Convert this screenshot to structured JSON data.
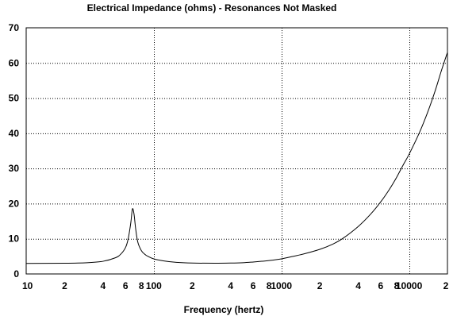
{
  "chart_data": {
    "type": "line",
    "title": "Electrical Impedance (ohms) - Resonances Not Masked",
    "xlabel": "Frequency (hertz)",
    "ylabel": "",
    "x_scale": "log",
    "xlim": [
      10,
      20000
    ],
    "ylim": [
      0,
      70
    ],
    "grid": true,
    "y_ticks": [
      "0",
      "10",
      "20",
      "30",
      "40",
      "50",
      "60",
      "70"
    ],
    "y_tick_values": [
      0,
      10,
      20,
      30,
      40,
      50,
      60,
      70
    ],
    "x_ticks": [
      "10",
      "2",
      "4",
      "6",
      "8",
      "100",
      "2",
      "4",
      "6",
      "8",
      "1000",
      "2",
      "4",
      "6",
      "8",
      "10000",
      "2"
    ],
    "x_tick_values": [
      10,
      20,
      40,
      60,
      80,
      100,
      200,
      400,
      600,
      800,
      1000,
      2000,
      4000,
      6000,
      8000,
      10000,
      20000
    ],
    "major_grid_x": [
      100,
      1000,
      10000
    ],
    "series": [
      {
        "values_x": [
          10,
          20,
          30,
          40,
          50,
          55,
          60,
          63,
          66,
          68,
          70,
          72,
          75,
          80,
          85,
          90,
          100,
          120,
          150,
          200,
          300,
          400,
          500,
          600,
          700,
          800,
          1000,
          1200,
          1500,
          2000,
          2500,
          3000,
          4000,
          5000,
          6000,
          7000,
          8000,
          9000,
          10000,
          12000,
          14000,
          16000,
          18000,
          20000
        ],
        "values_y": [
          3.0,
          3.05,
          3.2,
          3.6,
          4.6,
          5.6,
          7.5,
          10.0,
          14.5,
          18.5,
          17.0,
          13.0,
          9.0,
          6.6,
          5.6,
          5.0,
          4.3,
          3.7,
          3.3,
          3.1,
          3.05,
          3.1,
          3.2,
          3.4,
          3.6,
          3.8,
          4.3,
          4.9,
          5.7,
          7.0,
          8.4,
          10.0,
          13.5,
          17.0,
          20.5,
          24.0,
          27.5,
          31.0,
          34.0,
          40.0,
          46.0,
          52.0,
          58.0,
          63.0
        ]
      }
    ]
  }
}
